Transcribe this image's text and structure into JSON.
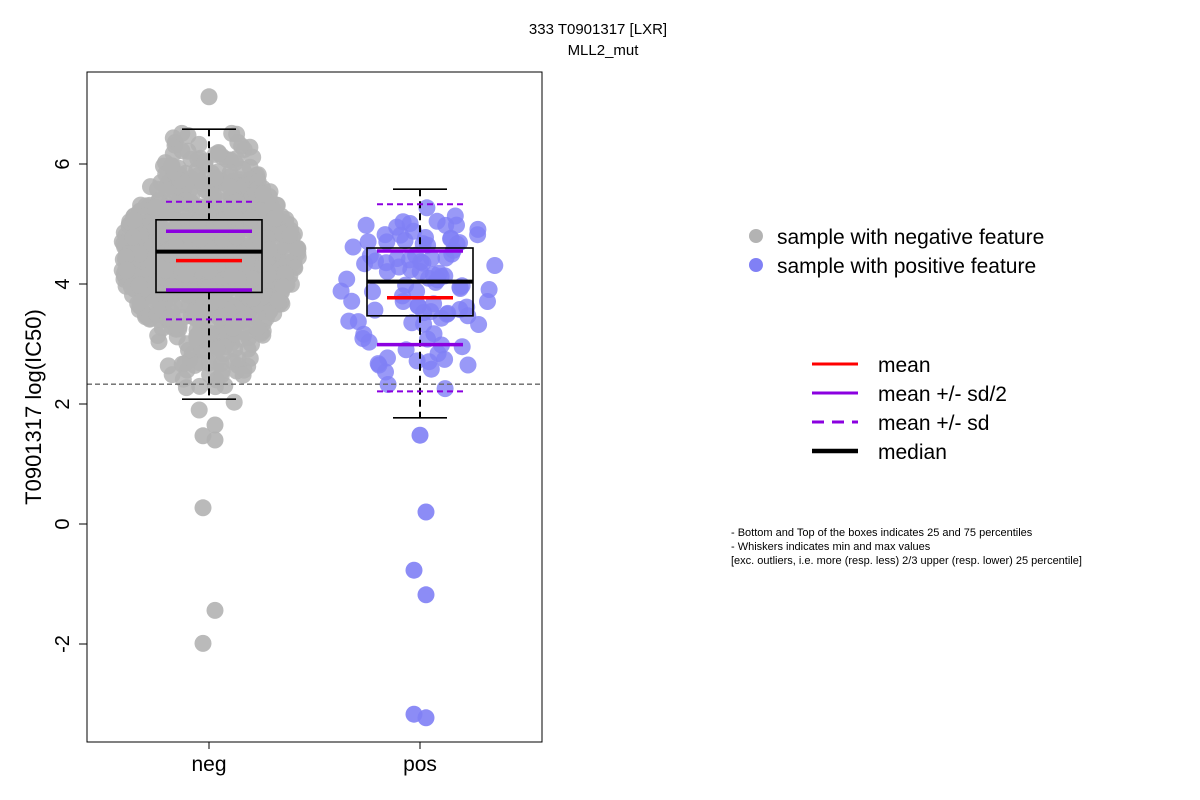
{
  "chart_data": {
    "type": "scatter",
    "title": "333 T0901317 [LXR]",
    "subtitle": "MLL2_mut",
    "xlabel": "",
    "ylabel": "T0901317 log(IC50)",
    "categories": [
      "neg",
      "pos"
    ],
    "ylim": [
      -3.6,
      7.6
    ],
    "yticks": [
      "-2",
      "0",
      "2",
      "4",
      "6"
    ],
    "threshold_line": 2.33,
    "colors": {
      "neg": "#b3b3b3",
      "pos": "#8080f5",
      "mean": "#ff0000",
      "sd": "#8b00e0",
      "median": "#000000"
    },
    "groups": [
      {
        "name": "neg",
        "box": {
          "q1": 3.86,
          "median": 4.54,
          "q3": 5.07,
          "whisker_low": 2.08,
          "whisker_high": 6.58
        },
        "mean": 4.39,
        "mean_minus_half_sd": 3.9,
        "mean_plus_half_sd": 4.88,
        "mean_minus_sd": 3.41,
        "mean_plus_sd": 5.37,
        "outliers": [
          7.12,
          1.65,
          1.47,
          1.4,
          0.27,
          -1.44,
          -1.99
        ],
        "points_summary": {
          "count": 900,
          "range": [
            1.9,
            6.6
          ]
        }
      },
      {
        "name": "pos",
        "box": {
          "q1": 3.47,
          "median": 4.04,
          "q3": 4.6,
          "whisker_low": 1.77,
          "whisker_high": 5.58
        },
        "mean": 3.77,
        "mean_minus_half_sd": 2.99,
        "mean_plus_half_sd": 4.55,
        "mean_minus_sd": 2.21,
        "mean_plus_sd": 5.33,
        "outliers": [
          1.48,
          0.2,
          -0.77,
          -1.18,
          -3.17,
          -3.23
        ],
        "points_summary": {
          "count": 100,
          "range": [
            1.9,
            5.6
          ]
        }
      }
    ],
    "legend_points": [
      {
        "label": "sample with negative feature",
        "color": "#b3b3b3"
      },
      {
        "label": "sample with positive feature",
        "color": "#8080f5"
      }
    ],
    "legend_lines": [
      {
        "label": "mean",
        "color": "#ff0000",
        "style": "solid",
        "weight": "normal"
      },
      {
        "label": "mean +/- sd/2",
        "color": "#8b00e0",
        "style": "solid",
        "weight": "normal"
      },
      {
        "label": "mean +/- sd",
        "color": "#8b00e0",
        "style": "dashed",
        "weight": "normal"
      },
      {
        "label": "median",
        "color": "#000000",
        "style": "solid",
        "weight": "bold"
      }
    ],
    "notes": [
      "- Bottom and Top of the boxes indicates 25 and 75 percentiles",
      "- Whiskers indicates min and max values",
      "[exc. outliers, i.e. more (resp. less) 2/3 upper (resp. lower) 25 percentile]"
    ]
  }
}
